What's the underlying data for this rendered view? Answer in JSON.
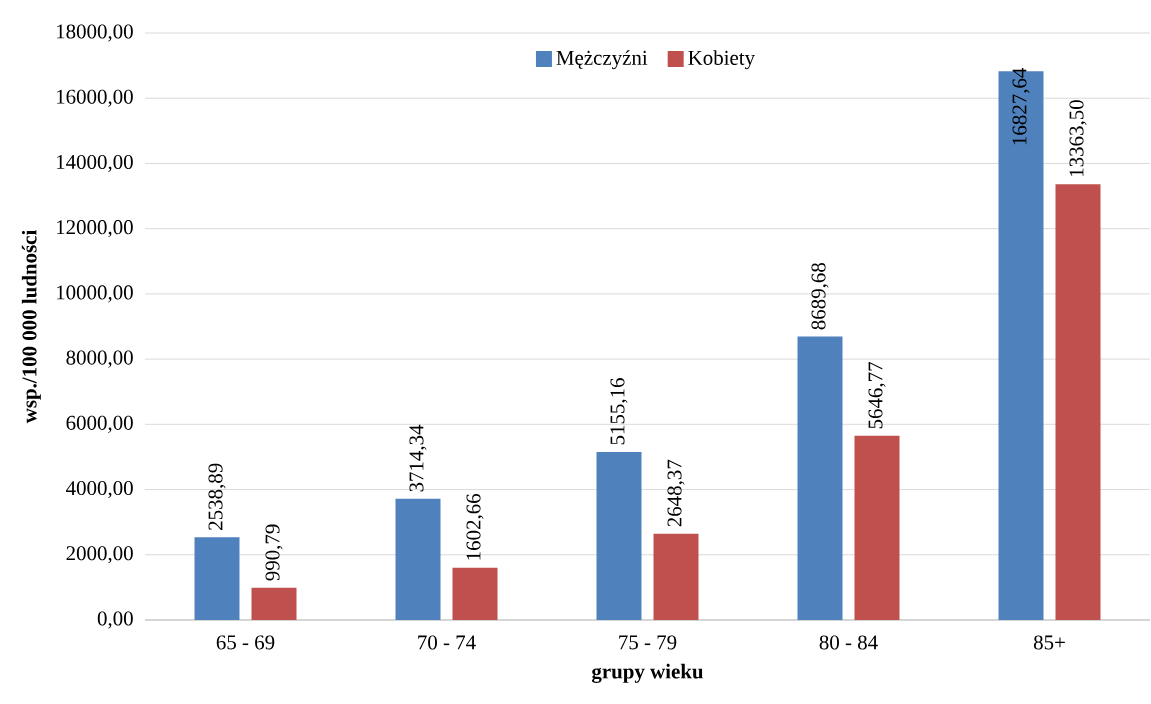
{
  "chart_data": {
    "type": "bar",
    "xlabel": "grupy wieku",
    "ylabel": "wsp./100 000 ludności",
    "categories": [
      "65 - 69",
      "70 - 74",
      "75 - 79",
      "80 - 84",
      "85+"
    ],
    "series": [
      {
        "name": "Mężczyźni",
        "color": "#4f81bd",
        "values": [
          2538.89,
          3714.34,
          5155.16,
          8689.68,
          16827.64
        ],
        "value_labels": [
          "2538,89",
          "3714,34",
          "5155,16",
          "8689,68",
          "16827,64"
        ]
      },
      {
        "name": "Kobiety",
        "color": "#c0504d",
        "values": [
          990.79,
          1602.66,
          2648.37,
          5646.77,
          13363.5
        ],
        "value_labels": [
          "990,79",
          "1602,66",
          "2648,37",
          "5646,77",
          "13363,50"
        ]
      }
    ],
    "ylim": [
      0,
      18000
    ],
    "yticks": [
      {
        "value": 0,
        "label": "0,00"
      },
      {
        "value": 2000,
        "label": "2000,00"
      },
      {
        "value": 4000,
        "label": "4000,00"
      },
      {
        "value": 6000,
        "label": "6000,00"
      },
      {
        "value": 8000,
        "label": "8000,00"
      },
      {
        "value": 10000,
        "label": "10000,00"
      },
      {
        "value": 12000,
        "label": "12000,00"
      },
      {
        "value": 14000,
        "label": "14000,00"
      },
      {
        "value": 16000,
        "label": "16000,00"
      },
      {
        "value": 18000,
        "label": "18000,00"
      }
    ],
    "grid": "y",
    "legend": "top"
  }
}
